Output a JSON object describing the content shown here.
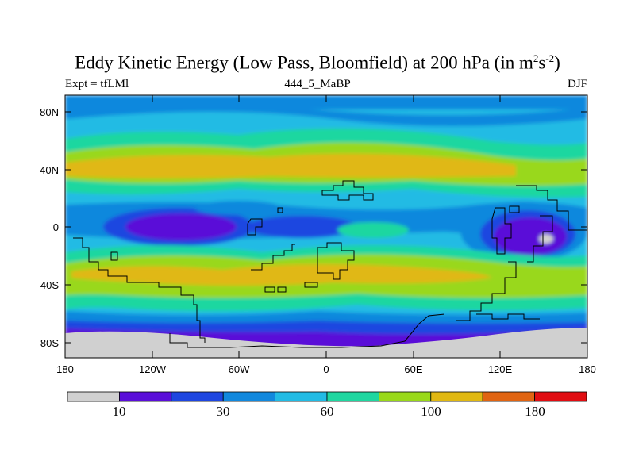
{
  "figure": {
    "title_main": "Eddy Kinetic Energy (Low Pass, Bloomfield) at 200 hPa (in m",
    "title_sup1": "2",
    "title_mid": "s",
    "title_sup2": "-2",
    "title_end": ")",
    "subtitle_left": "Expt = tfLMl",
    "subtitle_center": "444_5_MaBP",
    "subtitle_right": "DJF"
  },
  "map": {
    "lat_ticks": [
      "80N",
      "40N",
      "0",
      "40S",
      "80S"
    ],
    "lon_ticks": [
      "180",
      "120W",
      "60W",
      "0",
      "60E",
      "120E",
      "180"
    ]
  },
  "colorbar": {
    "colors": [
      "#d0d0d0",
      "#5a0fd8",
      "#1e46e0",
      "#1188dd",
      "#22bbe4",
      "#1fd7a0",
      "#99d81a",
      "#e0b812",
      "#e06412",
      "#e00d12"
    ],
    "labels": [
      "10",
      "30",
      "60",
      "100",
      "180"
    ]
  }
}
